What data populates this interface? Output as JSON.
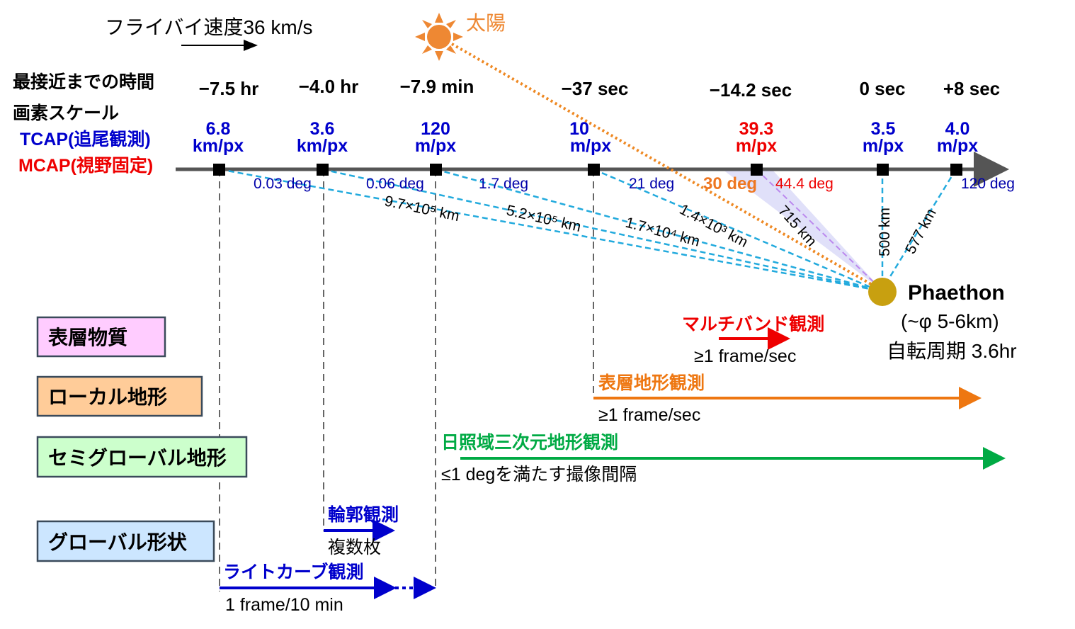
{
  "header": {
    "flyby_speed": "フライバイ速度36 km/s",
    "sun_label": "太陽"
  },
  "row_labels": {
    "time": "最接近までの時間",
    "scale": "画素スケール",
    "tcap": "TCAP(追尾観測)",
    "mcap": "MCAP(視野固定)"
  },
  "timeline": [
    {
      "time": "−7.5 hr",
      "scale_value": "6.8",
      "scale_unit": "km/px"
    },
    {
      "time": "−4.0 hr",
      "scale_value": "3.6",
      "scale_unit": "km/px"
    },
    {
      "time": "−7.9 min",
      "scale_value": "120",
      "scale_unit": "m/px"
    },
    {
      "time": "−37 sec",
      "scale_value": "10",
      "scale_unit": "m/px"
    },
    {
      "time": "−14.2 sec",
      "scale_value": "39.3",
      "scale_unit": "m/px"
    },
    {
      "time": "0 sec",
      "scale_value": "3.5",
      "scale_unit": "m/px"
    },
    {
      "time": "+8 sec",
      "scale_value": "4.0",
      "scale_unit": "m/px"
    }
  ],
  "angles": [
    "0.03 deg",
    "0.06 deg",
    "1.7 deg",
    "21 deg",
    "30 deg",
    "44.4 deg",
    "120 deg"
  ],
  "distances": [
    "9.7×10⁵ km",
    "5.2×10⁵ km",
    "1.7×10⁴ km",
    "1.4×10³ km",
    "715 km",
    "500 km",
    "577 km"
  ],
  "target": {
    "name": "Phaethon",
    "size": "(~φ 5-6km)",
    "rotation": "自転周期 3.6hr"
  },
  "categories": [
    "表層物質",
    "ローカル地形",
    "セミグローバル地形",
    "グローバル形状"
  ],
  "observations": {
    "multiband": {
      "label": "マルチバンド観測",
      "rate": "≥1 frame/sec"
    },
    "surface": {
      "label": "表層地形観測",
      "rate": "≥1 frame/sec"
    },
    "sunlit": {
      "label": "日照域三次元地形観測",
      "rate": "≤1 degを満たす撮像間隔"
    },
    "contour": {
      "label": "輪郭観測",
      "rate": "複数枚"
    },
    "lightcurve": {
      "label": "ライトカーブ観測",
      "rate": "1 frame/10 min"
    }
  },
  "colors": {
    "blue": "#0000cc",
    "red": "#ee0000",
    "orange": "#ee7711",
    "green": "#00aa44",
    "cyan": "#22aadd"
  }
}
